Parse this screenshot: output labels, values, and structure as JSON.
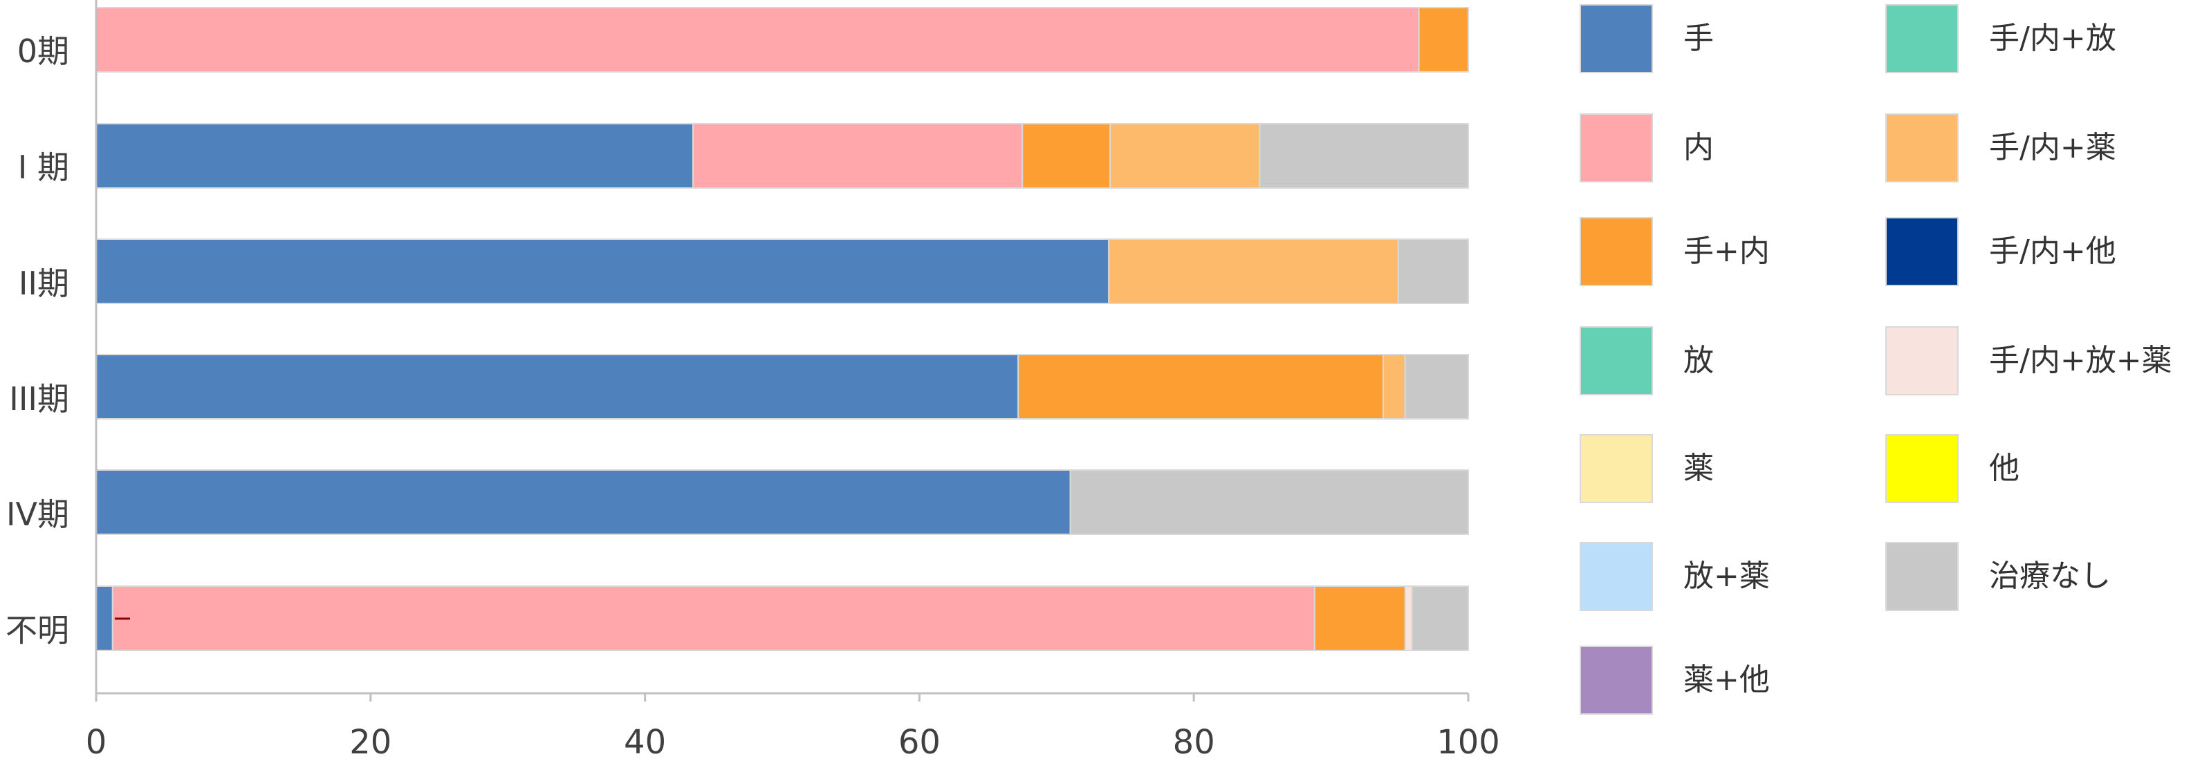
{
  "chart_data": {
    "type": "bar",
    "orientation": "horizontal",
    "stacked": true,
    "categories": [
      "0期",
      "I 期",
      "II期",
      "III期",
      "IV期",
      "不明"
    ],
    "xlim": [
      0,
      100
    ],
    "xticks": [
      "0",
      "20",
      "40",
      "60",
      "80",
      "100"
    ],
    "grid": false,
    "legend_position": "right",
    "series": [
      {
        "name": "手",
        "color": "#4f81bd",
        "values": [
          0,
          43.5,
          73.8,
          67.2,
          71.0,
          1.2
        ]
      },
      {
        "name": "内",
        "color": "#ffa7ab",
        "values": [
          96.4,
          24.0,
          0,
          0,
          0,
          87.6
        ]
      },
      {
        "name": "手+内",
        "color": "#fd9e32",
        "values": [
          3.6,
          6.4,
          0,
          26.6,
          0,
          6.6
        ]
      },
      {
        "name": "放",
        "color": "#64d0b4",
        "values": [
          0,
          0,
          0,
          0,
          0,
          0
        ]
      },
      {
        "name": "薬",
        "color": "#fdeca7",
        "values": [
          0,
          0,
          0,
          0,
          0,
          0
        ]
      },
      {
        "name": "放+薬",
        "color": "#bbdefb",
        "values": [
          0,
          0,
          0,
          0,
          0,
          0
        ]
      },
      {
        "name": "薬+他",
        "color": "#a589bf",
        "values": [
          0,
          0,
          0,
          0,
          0,
          0
        ]
      },
      {
        "name": "手/内+放",
        "color": "#64d0b4",
        "values": [
          0,
          0,
          0,
          0,
          0,
          0
        ]
      },
      {
        "name": "手/内+薬",
        "color": "#feba6b",
        "values": [
          0,
          10.9,
          21.1,
          1.6,
          0,
          0
        ]
      },
      {
        "name": "手/内+他",
        "color": "#003a91",
        "values": [
          0,
          0,
          0,
          0,
          0,
          0
        ]
      },
      {
        "name": "手/内+放+薬",
        "color": "#f9e3df",
        "values": [
          0,
          0,
          0,
          0,
          0,
          0.5
        ]
      },
      {
        "name": "他",
        "color": "#ffff00",
        "values": [
          0,
          0,
          0,
          0,
          0,
          0
        ]
      },
      {
        "name": "治療なし",
        "color": "#c8c8c8",
        "values": [
          0,
          15.2,
          5.1,
          4.6,
          29.0,
          4.1
        ]
      }
    ]
  },
  "colors": {
    "axis": "#c0c0c0",
    "tick_text": "#404040",
    "bar_outline": "#d9d9d9",
    "annotation_mark": "#8b0000"
  },
  "legend": {
    "column_1": [
      "手",
      "内",
      "手+内",
      "放",
      "薬",
      "放+薬",
      "薬+他"
    ],
    "column_2": [
      "手/内+放",
      "手/内+薬",
      "手/内+他",
      "手/内+放+薬",
      "他",
      "治療なし"
    ]
  }
}
